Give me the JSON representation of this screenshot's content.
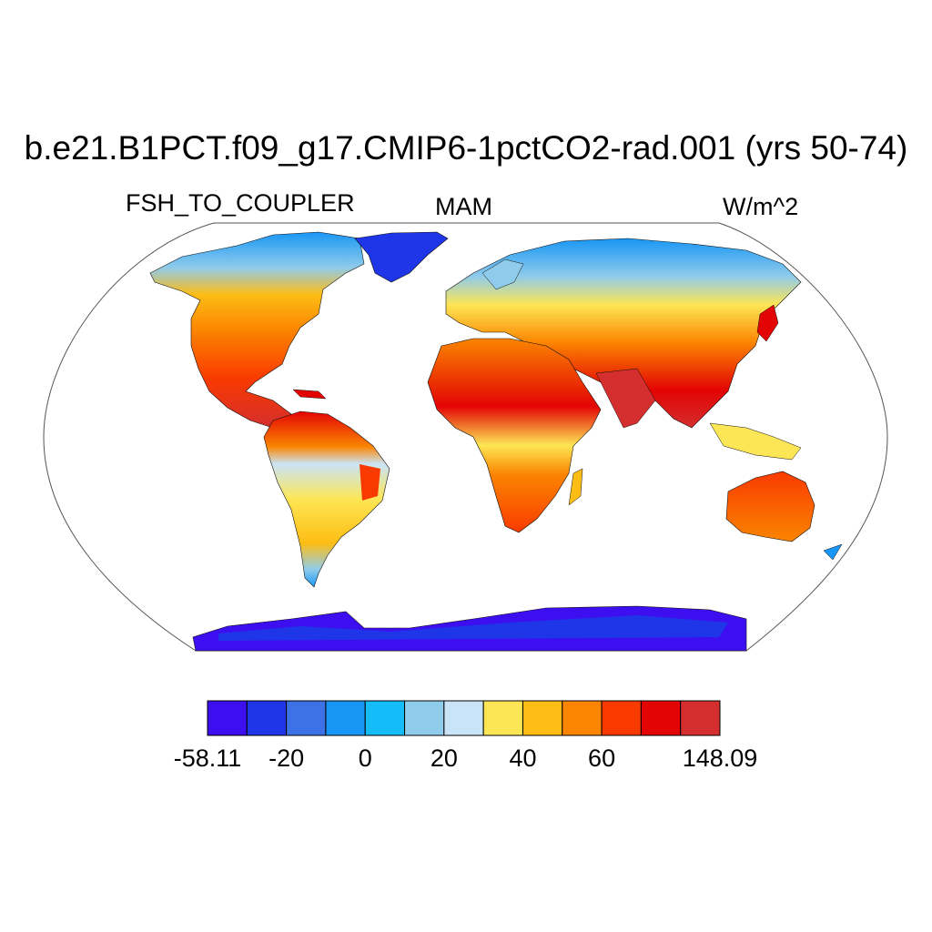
{
  "header": {
    "title": "b.e21.B1PCT.f09_g17.CMIP6-1pctCO2-rad.001 (yrs 50-74)",
    "variable": "FSH_TO_COUPLER",
    "season": "MAM",
    "units": "W/m^2"
  },
  "map": {
    "projection": "Robinson",
    "fill": "land only, shaded by value",
    "ocean_color": "#ffffff",
    "coastline_color": "#000000"
  },
  "colorbar": {
    "colors": [
      "#3d0ff0",
      "#1f36e8",
      "#3c72e6",
      "#1896f5",
      "#15bdf8",
      "#8fcbeb",
      "#c9e4f6",
      "#fde655",
      "#fdbd14",
      "#fb8500",
      "#f93a00",
      "#e30404",
      "#d42e2e"
    ],
    "labels": [
      "-58.11",
      "-20",
      "0",
      "20",
      "40",
      "60",
      "148.09"
    ],
    "label_positions": [
      0,
      2,
      4,
      6,
      8,
      10,
      13
    ]
  }
}
